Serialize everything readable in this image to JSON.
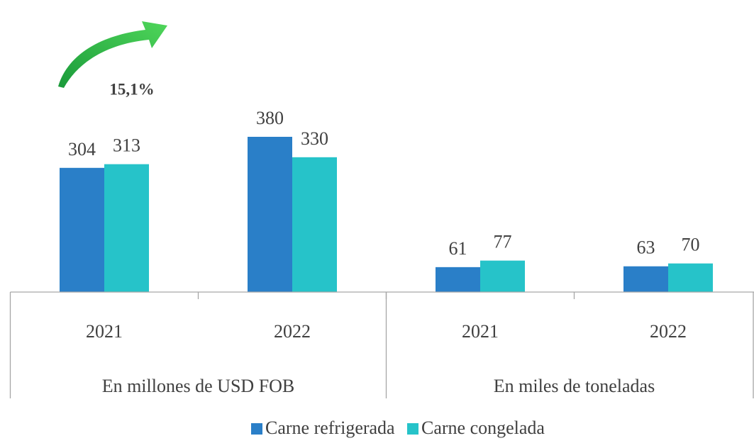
{
  "chart_data": {
    "type": "bar",
    "categories": [
      "2021",
      "2022",
      "2021",
      "2022"
    ],
    "groups": [
      "En millones de USD FOB",
      "En miles de toneladas"
    ],
    "series": [
      {
        "name": "Carne refrigerada",
        "color": "#2a7fc8",
        "values": [
          304,
          380,
          61,
          63
        ]
      },
      {
        "name": "Carne congelada",
        "color": "#26c3c9",
        "values": [
          313,
          330,
          77,
          70
        ]
      }
    ],
    "annotation": "15,1%"
  }
}
